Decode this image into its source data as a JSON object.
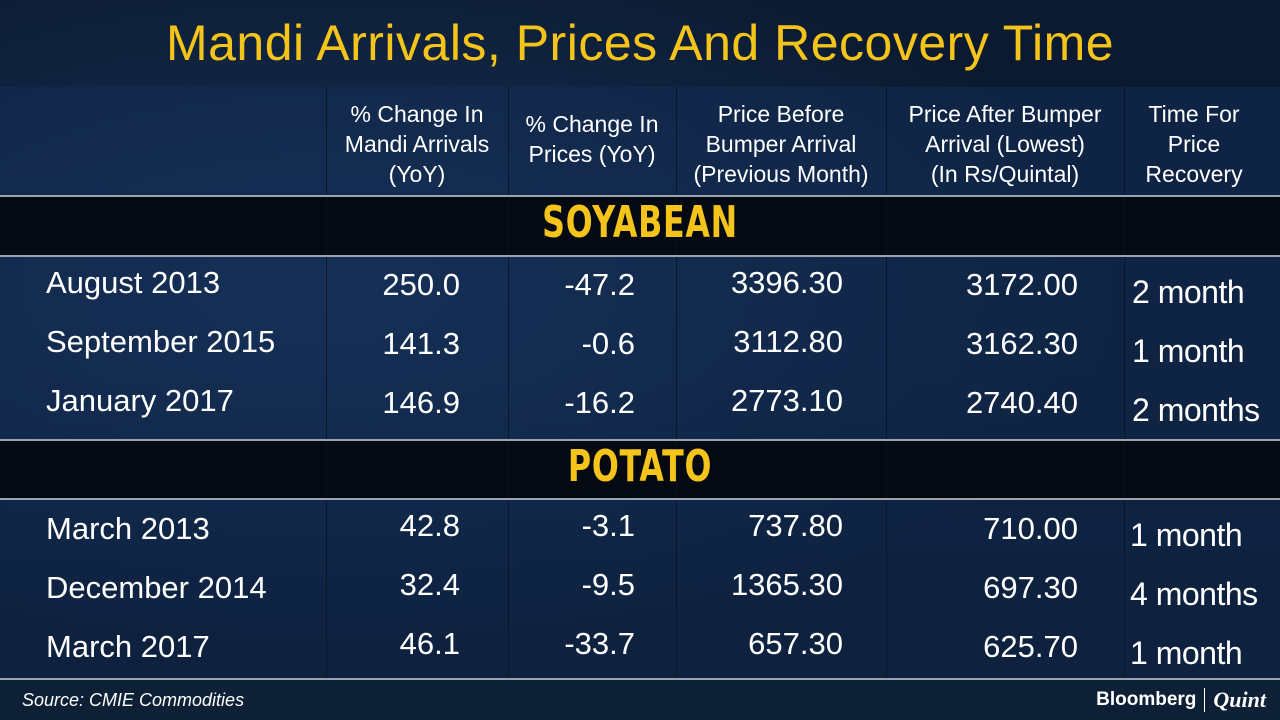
{
  "chart_data": {
    "type": "table",
    "title": "Mandi Arrivals, Prices And Recovery Time",
    "columns": [
      "% Change In Mandi Arrivals (YoY)",
      "% Change In Prices (YoY)",
      "Price Before Bumper Arrival (Previous Month)",
      "Price After Bumper Arrival (Lowest) (In Rs/Quintal)",
      "Time For Price Recovery"
    ],
    "sections": [
      {
        "name": "SOYABEAN",
        "rows": [
          {
            "period": "August 2013",
            "arrivals": "250.0",
            "prices": "-47.2",
            "before": "3396.30",
            "after": "3172.00",
            "recovery": "2 month"
          },
          {
            "period": "September 2015",
            "arrivals": "141.3",
            "prices": "-0.6",
            "before": "3112.80",
            "after": "3162.30",
            "recovery": "1 month"
          },
          {
            "period": "January 2017",
            "arrivals": "146.9",
            "prices": "-16.2",
            "before": "2773.10",
            "after": "2740.40",
            "recovery": "2 months"
          }
        ]
      },
      {
        "name": "POTATO",
        "rows": [
          {
            "period": "March 2013",
            "arrivals": "42.8",
            "prices": "-3.1",
            "before": "737.80",
            "after": "710.00",
            "recovery": "1 month"
          },
          {
            "period": "December 2014",
            "arrivals": "32.4",
            "prices": "-9.5",
            "before": "1365.30",
            "after": "697.30",
            "recovery": "4 months"
          },
          {
            "period": "March 2017",
            "arrivals": "46.1",
            "prices": "-33.7",
            "before": "657.30",
            "after": "625.70",
            "recovery": "1 month"
          }
        ]
      }
    ],
    "colors": {
      "title": "#f5c41a",
      "section_label": "#f5c41a",
      "background": "#081526",
      "text": "#ffffff"
    }
  },
  "headers": {
    "arrivals": [
      "% Change In",
      "Mandi Arrivals",
      "(YoY)"
    ],
    "prices": [
      "% Change In",
      "Prices (YoY)"
    ],
    "before": [
      "Price Before",
      "Bumper Arrival",
      "(Previous Month)"
    ],
    "after": [
      "Price After Bumper",
      "Arrival (Lowest)",
      "(In Rs/Quintal)"
    ],
    "recovery": [
      "Time For",
      "Price",
      "Recovery"
    ]
  },
  "footer": {
    "source": "Source: CMIE Commodities",
    "logo_left": "Bloomberg",
    "logo_right": "Quint"
  }
}
